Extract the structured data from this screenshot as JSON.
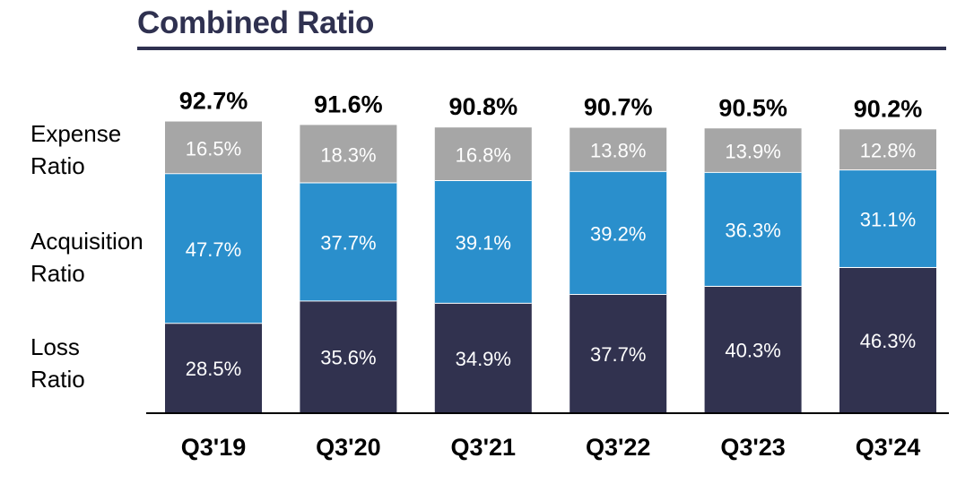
{
  "title": "Combined Ratio",
  "row_labels": {
    "expense": "Expense\nRatio",
    "acquisition": "Acquisition\nRatio",
    "loss": "Loss\nRatio"
  },
  "colors": {
    "loss": "#31324f",
    "acquisition": "#2a8fcc",
    "expense": "#a6a6a6",
    "title": "#2f3150"
  },
  "chart_data": {
    "type": "bar",
    "stacked": true,
    "title": "Combined Ratio",
    "categories": [
      "Q3'19",
      "Q3'20",
      "Q3'21",
      "Q3'22",
      "Q3'23",
      "Q3'24"
    ],
    "series": [
      {
        "name": "Loss Ratio",
        "values": [
          28.5,
          35.6,
          34.9,
          37.7,
          40.3,
          46.3
        ],
        "labels": [
          "28.5%",
          "35.6%",
          "34.9%",
          "37.7%",
          "40.3%",
          "46.3%"
        ]
      },
      {
        "name": "Acquisition Ratio",
        "values": [
          47.7,
          37.7,
          39.1,
          39.2,
          36.3,
          31.1
        ],
        "labels": [
          "47.7%",
          "37.7%",
          "39.1%",
          "39.2%",
          "36.3%",
          "31.1%"
        ]
      },
      {
        "name": "Expense Ratio",
        "values": [
          16.5,
          18.3,
          16.8,
          13.8,
          13.9,
          12.8
        ],
        "labels": [
          "16.5%",
          "18.3%",
          "16.8%",
          "13.8%",
          "13.9%",
          "12.8%"
        ]
      }
    ],
    "totals": [
      92.7,
      91.6,
      90.8,
      90.7,
      90.5,
      90.2
    ],
    "total_labels": [
      "92.7%",
      "91.6%",
      "90.8%",
      "90.7%",
      "90.5%",
      "90.2%"
    ],
    "ylim": [
      0,
      100
    ],
    "grid": false,
    "legend": "left"
  }
}
